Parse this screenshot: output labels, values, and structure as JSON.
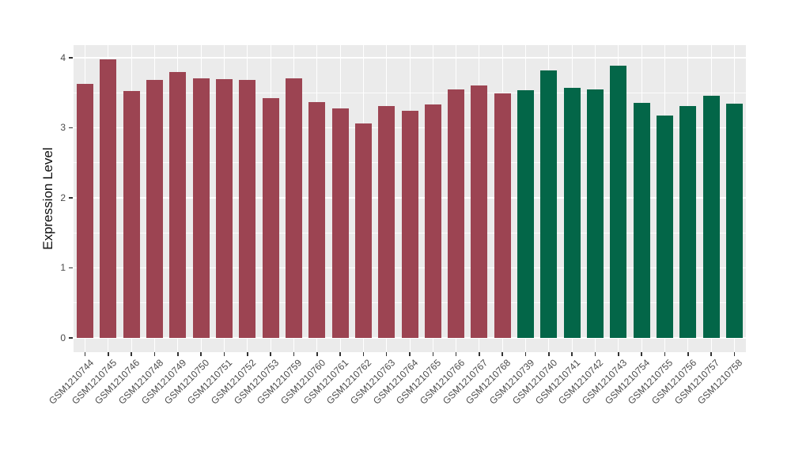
{
  "chart_data": {
    "type": "bar",
    "title": "",
    "xlabel": "",
    "ylabel": "Expression Level",
    "ylim": [
      0,
      4.18
    ],
    "yticks": [
      0,
      1,
      2,
      3,
      4
    ],
    "yticklabels": [
      "0",
      "1",
      "2",
      "3",
      "4"
    ],
    "grid": "on",
    "legend_position": "none",
    "panel_bg": "#EBEBEB",
    "grid_color": "#FFFFFF",
    "tick_color": "#333333",
    "categories": [
      "GSM1210744",
      "GSM1210745",
      "GSM1210746",
      "GSM1210748",
      "GSM1210749",
      "GSM1210750",
      "GSM1210751",
      "GSM1210752",
      "GSM1210753",
      "GSM1210759",
      "GSM1210760",
      "GSM1210761",
      "GSM1210762",
      "GSM1210763",
      "GSM1210764",
      "GSM1210765",
      "GSM1210766",
      "GSM1210767",
      "GSM1210768",
      "GSM1210739",
      "GSM1210740",
      "GSM1210741",
      "GSM1210742",
      "GSM1210743",
      "GSM1210754",
      "GSM1210755",
      "GSM1210756",
      "GSM1210757",
      "GSM1210758"
    ],
    "values": [
      3.62,
      3.98,
      3.52,
      3.68,
      3.8,
      3.7,
      3.69,
      3.68,
      3.42,
      3.7,
      3.37,
      3.28,
      3.06,
      3.31,
      3.24,
      3.33,
      3.55,
      3.6,
      3.49,
      3.54,
      3.82,
      3.57,
      3.55,
      3.88,
      3.35,
      3.17,
      3.31,
      3.46,
      3.34
    ],
    "bar_groups": [
      "group1",
      "group1",
      "group1",
      "group1",
      "group1",
      "group1",
      "group1",
      "group1",
      "group1",
      "group1",
      "group1",
      "group1",
      "group1",
      "group1",
      "group1",
      "group1",
      "group1",
      "group1",
      "group1",
      "group2",
      "group2",
      "group2",
      "group2",
      "group2",
      "group2",
      "group2",
      "group2",
      "group2",
      "group2"
    ],
    "group_colors": {
      "group1": "#9C4452",
      "group2": "#036648"
    }
  }
}
